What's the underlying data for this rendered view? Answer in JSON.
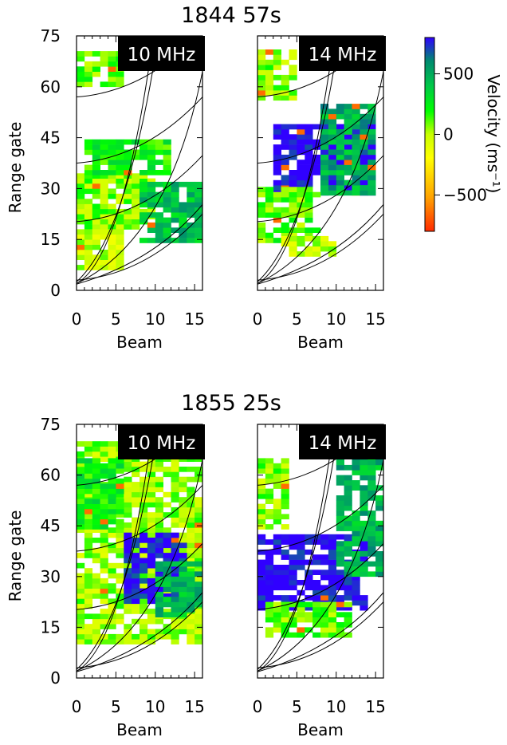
{
  "chart_data": {
    "type": "heatmap",
    "figure_notes": "Two time snapshots, each with 10 MHz and 14 MHz panels; cell colours encode line-of-sight velocity, overlaid with black contour arcs.",
    "panels_rows": [
      {
        "title": "1844 57s",
        "panels": [
          {
            "label": "10 MHz",
            "xlabel": "Beam",
            "ylabel": "Range gate",
            "xlim": [
              0,
              16
            ],
            "ylim": [
              0,
              75
            ],
            "xticks": [
              "0",
              "5",
              "10",
              "15"
            ],
            "yticks": [
              "0",
              "15",
              "30",
              "45",
              "60",
              "75"
            ],
            "regions": [
              {
                "beams": [
                  0,
                  10
                ],
                "gates": [
                  18,
                  34
                ],
                "velocity": 60
              },
              {
                "beams": [
                  8,
                  16
                ],
                "gates": [
                  14,
                  32
                ],
                "velocity": 420
              },
              {
                "beams": [
                  0,
                  6
                ],
                "gates": [
                  60,
                  70
                ],
                "velocity": 100
              },
              {
                "beams": [
                  9,
                  14
                ],
                "gates": [
                  66,
                  70
                ],
                "velocity": 800
              },
              {
                "beams": [
                  1,
                  12
                ],
                "gates": [
                  34,
                  44
                ],
                "velocity": 220
              },
              {
                "beams": [
                  0,
                  6
                ],
                "gates": [
                  6,
                  18
                ],
                "velocity": -30
              }
            ]
          },
          {
            "label": "14 MHz",
            "xlabel": "Beam",
            "ylabel": "",
            "xlim": [
              0,
              16
            ],
            "ylim": [
              0,
              75
            ],
            "xticks": [
              "0",
              "5",
              "10",
              "15"
            ],
            "yticks": [
              "0",
              "15",
              "30",
              "45",
              "60",
              "75"
            ],
            "regions": [
              {
                "beams": [
                  2,
                  15
                ],
                "gates": [
                  28,
                  48
                ],
                "velocity": 820
              },
              {
                "beams": [
                  8,
                  15
                ],
                "gates": [
                  28,
                  54
                ],
                "velocity": 480
              },
              {
                "beams": [
                  0,
                  8
                ],
                "gates": [
                  14,
                  30
                ],
                "velocity": 120
              },
              {
                "beams": [
                  3,
                  10
                ],
                "gates": [
                  10,
                  16
                ],
                "velocity": -20
              },
              {
                "beams": [
                  0,
                  5
                ],
                "gates": [
                  56,
                  70
                ],
                "velocity": 60
              }
            ]
          }
        ]
      },
      {
        "title": "1855 25s",
        "panels": [
          {
            "label": "10 MHz",
            "xlabel": "Beam",
            "ylabel": "Range gate",
            "xlim": [
              0,
              16
            ],
            "ylim": [
              0,
              75
            ],
            "xticks": [
              "0",
              "5",
              "10",
              "15"
            ],
            "yticks": [
              "0",
              "15",
              "30",
              "45",
              "60",
              "75"
            ],
            "regions": [
              {
                "beams": [
                  0,
                  16
                ],
                "gates": [
                  10,
                  70
                ],
                "velocity": 40
              },
              {
                "beams": [
                  6,
                  14
                ],
                "gates": [
                  22,
                  42
                ],
                "velocity": 800
              },
              {
                "beams": [
                  10,
                  16
                ],
                "gates": [
                  18,
                  34
                ],
                "velocity": 450
              },
              {
                "beams": [
                  0,
                  6
                ],
                "gates": [
                  44,
                  64
                ],
                "velocity": 250
              }
            ]
          },
          {
            "label": "14 MHz",
            "xlabel": "Beam",
            "ylabel": "",
            "xlim": [
              0,
              16
            ],
            "ylim": [
              0,
              75
            ],
            "xticks": [
              "0",
              "5",
              "10",
              "15"
            ],
            "yticks": [
              "0",
              "15",
              "30",
              "45",
              "60",
              "75"
            ],
            "regions": [
              {
                "beams": [
                  0,
                  14
                ],
                "gates": [
                  20,
                  42
                ],
                "velocity": 820
              },
              {
                "beams": [
                  10,
                  16
                ],
                "gates": [
                  30,
                  70
                ],
                "velocity": 460
              },
              {
                "beams": [
                  1,
                  12
                ],
                "gates": [
                  12,
                  22
                ],
                "velocity": 90
              },
              {
                "beams": [
                  0,
                  4
                ],
                "gates": [
                  44,
                  64
                ],
                "velocity": 60
              }
            ]
          }
        ]
      }
    ],
    "colorbar": {
      "label": "Velocity (ms⁻¹)",
      "range": [
        -800,
        800
      ],
      "ticks": [
        "500",
        "0",
        "−500"
      ],
      "tick_values": [
        500,
        0,
        -500
      ],
      "colors": [
        "#ff2a00",
        "#ffa500",
        "#ffff00",
        "#c8ff00",
        "#00ff00",
        "#00c848",
        "#008a70",
        "#3000ff"
      ]
    }
  }
}
